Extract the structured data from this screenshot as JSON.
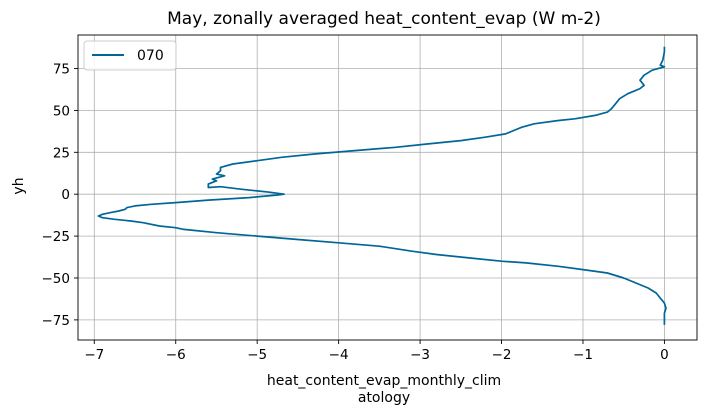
{
  "chart_data": {
    "type": "line",
    "title": "May, zonally averaged heat_content_evap (W m-2)",
    "xlabel_line1": "heat_content_evap_monthly_clim",
    "xlabel_line2": "atology",
    "ylabel": "yh",
    "xlim": [
      -7.2,
      0.4
    ],
    "ylim": [
      -87,
      95
    ],
    "xticks": [
      -7,
      -6,
      -5,
      -4,
      -3,
      -2,
      -1,
      0
    ],
    "xtick_labels": [
      "−7",
      "−6",
      "−5",
      "−4",
      "−3",
      "−2",
      "−1",
      "0"
    ],
    "yticks": [
      -75,
      -50,
      -25,
      0,
      25,
      50,
      75
    ],
    "ytick_labels": [
      "−75",
      "−50",
      "−25",
      "0",
      "25",
      "50",
      "75"
    ],
    "grid": true,
    "legend_position": "top-left",
    "series": [
      {
        "name": "070",
        "color": "#006699",
        "points": [
          [
            0.0,
            88
          ],
          [
            0.0,
            85
          ],
          [
            -0.02,
            80
          ],
          [
            -0.05,
            77
          ],
          [
            0.0,
            76
          ],
          [
            -0.15,
            74
          ],
          [
            -0.25,
            71
          ],
          [
            -0.3,
            68
          ],
          [
            -0.25,
            65
          ],
          [
            -0.3,
            63
          ],
          [
            -0.45,
            60
          ],
          [
            -0.55,
            57
          ],
          [
            -0.6,
            54
          ],
          [
            -0.65,
            51
          ],
          [
            -0.7,
            49
          ],
          [
            -0.85,
            47
          ],
          [
            -1.1,
            45
          ],
          [
            -1.3,
            44
          ],
          [
            -1.6,
            42
          ],
          [
            -1.75,
            40
          ],
          [
            -1.85,
            38
          ],
          [
            -1.95,
            36
          ],
          [
            -2.2,
            34
          ],
          [
            -2.5,
            32
          ],
          [
            -2.9,
            30
          ],
          [
            -3.3,
            28
          ],
          [
            -3.8,
            26
          ],
          [
            -4.3,
            24
          ],
          [
            -4.7,
            22
          ],
          [
            -5.0,
            20
          ],
          [
            -5.3,
            18
          ],
          [
            -5.45,
            16
          ],
          [
            -5.45,
            14
          ],
          [
            -5.5,
            12
          ],
          [
            -5.4,
            11
          ],
          [
            -5.55,
            9
          ],
          [
            -5.5,
            8
          ],
          [
            -5.6,
            6
          ],
          [
            -5.6,
            4
          ],
          [
            -5.45,
            4.5
          ],
          [
            -5.2,
            3
          ],
          [
            -5.0,
            2
          ],
          [
            -4.85,
            1.2
          ],
          [
            -4.67,
            0
          ],
          [
            -4.75,
            -0.5
          ],
          [
            -5.1,
            -2
          ],
          [
            -5.6,
            -3.5
          ],
          [
            -6.0,
            -5
          ],
          [
            -6.3,
            -6
          ],
          [
            -6.5,
            -7
          ],
          [
            -6.6,
            -8
          ],
          [
            -6.62,
            -9
          ],
          [
            -6.7,
            -10
          ],
          [
            -6.8,
            -11
          ],
          [
            -6.9,
            -12
          ],
          [
            -6.95,
            -13
          ],
          [
            -6.9,
            -14
          ],
          [
            -6.75,
            -15
          ],
          [
            -6.55,
            -16
          ],
          [
            -6.4,
            -17
          ],
          [
            -6.2,
            -19
          ],
          [
            -6.0,
            -20
          ],
          [
            -5.9,
            -21
          ],
          [
            -5.5,
            -23
          ],
          [
            -5.0,
            -25
          ],
          [
            -4.5,
            -27
          ],
          [
            -4.0,
            -29
          ],
          [
            -3.5,
            -31
          ],
          [
            -3.1,
            -34
          ],
          [
            -2.8,
            -36
          ],
          [
            -2.4,
            -38
          ],
          [
            -2.0,
            -40
          ],
          [
            -1.7,
            -41
          ],
          [
            -1.3,
            -43
          ],
          [
            -1.0,
            -45
          ],
          [
            -0.7,
            -47
          ],
          [
            -0.5,
            -50
          ],
          [
            -0.35,
            -53
          ],
          [
            -0.2,
            -56
          ],
          [
            -0.1,
            -59
          ],
          [
            -0.05,
            -62
          ],
          [
            0.0,
            -65
          ],
          [
            0.02,
            -68
          ],
          [
            0.0,
            -71
          ],
          [
            0.0,
            -75
          ],
          [
            0.0,
            -78
          ]
        ]
      }
    ]
  }
}
